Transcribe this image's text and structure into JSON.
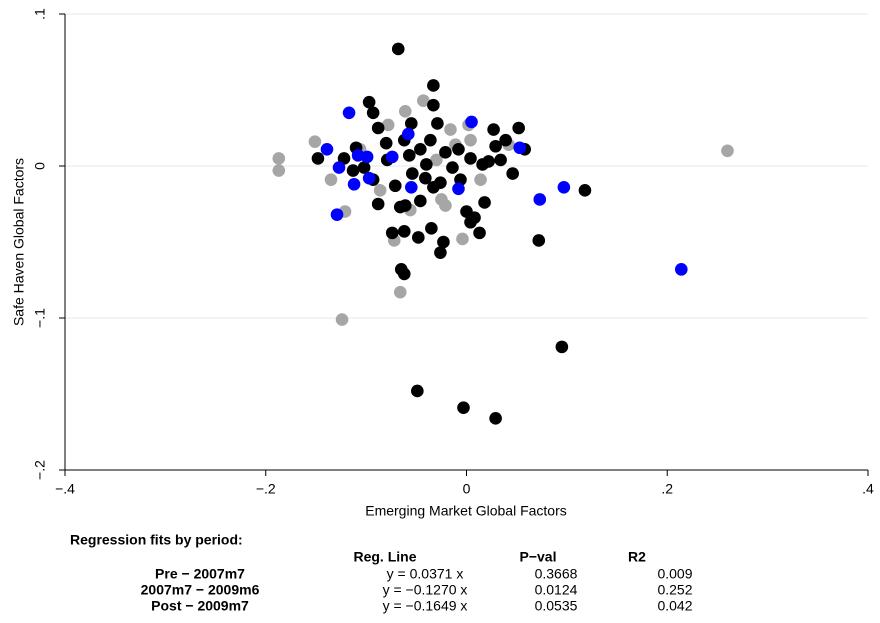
{
  "chart_data": {
    "type": "scatter",
    "x_label": "Emerging Market Global Factors",
    "y_label": "Safe Haven Global Factors",
    "xlim": [
      -0.4,
      0.4
    ],
    "ylim": [
      -0.2,
      0.1
    ],
    "xticks": [
      {
        "value": -0.4,
        "label": "−.4"
      },
      {
        "value": -0.2,
        "label": "−.2"
      },
      0,
      {
        "value": 0.2,
        "label": ".2"
      },
      {
        "value": 0.4,
        "label": ".4"
      }
    ],
    "yticks": [
      {
        "value": -0.2,
        "label": "−.2"
      },
      {
        "value": -0.1,
        "label": "−.1"
      },
      0,
      {
        "value": 0.1,
        "label": ".1"
      }
    ],
    "grid": true,
    "series": [
      {
        "color": "#a6a6a6",
        "x": [
          -0.187,
          -0.187,
          0.26,
          -0.124,
          -0.066,
          -0.004,
          -0.072,
          -0.151,
          -0.135,
          -0.121,
          -0.061,
          0.002,
          0.004,
          -0.043,
          -0.078,
          -0.025,
          -0.021,
          -0.056,
          -0.011,
          -0.03,
          0.014,
          -0.086,
          0.042,
          -0.016,
          -0.106
        ],
        "y": [
          0.005,
          -0.003,
          0.01,
          -0.101,
          -0.083,
          -0.048,
          -0.049,
          0.016,
          -0.009,
          -0.03,
          0.036,
          0.027,
          0.017,
          0.043,
          0.027,
          -0.022,
          -0.026,
          -0.029,
          0.014,
          0.004,
          -0.009,
          -0.016,
          0.014,
          0.024,
          0.011
        ]
      },
      {
        "color": "#000000",
        "x": [
          -0.068,
          -0.033,
          -0.033,
          -0.097,
          -0.093,
          -0.029,
          0.052,
          0.027,
          -0.088,
          -0.055,
          -0.062,
          -0.08,
          -0.11,
          -0.148,
          -0.122,
          0.058,
          0.029,
          0.004,
          0.022,
          0.046,
          0.118,
          0.072,
          0.018,
          0,
          0.008,
          0.013,
          0.004,
          -0.088,
          -0.074,
          -0.062,
          -0.048,
          -0.035,
          -0.023,
          -0.026,
          -0.065,
          -0.062,
          0.095,
          -0.049,
          -0.003,
          0.029,
          -0.046,
          -0.066,
          -0.061,
          -0.071,
          -0.054,
          -0.041,
          -0.026,
          -0.014,
          -0.021,
          -0.008,
          -0.036,
          -0.046,
          -0.102,
          -0.093,
          -0.113,
          -0.079,
          -0.057,
          -0.04,
          -0.033,
          -0.006,
          0.016,
          0.034,
          0.039
        ],
        "y": [
          0.077,
          0.053,
          0.04,
          0.042,
          0.035,
          0.028,
          0.025,
          0.024,
          0.025,
          0.028,
          0.017,
          0.015,
          0.012,
          0.005,
          0.005,
          0.011,
          0.013,
          0.005,
          0.003,
          -0.005,
          -0.016,
          -0.049,
          -0.024,
          -0.03,
          -0.034,
          -0.044,
          -0.037,
          -0.025,
          -0.044,
          -0.043,
          -0.047,
          -0.041,
          -0.05,
          -0.057,
          -0.068,
          -0.071,
          -0.119,
          -0.148,
          -0.159,
          -0.166,
          -0.023,
          -0.027,
          -0.026,
          -0.013,
          -0.005,
          -0.008,
          -0.011,
          -0.001,
          0.009,
          0.011,
          0.017,
          0.011,
          -0.001,
          -0.009,
          -0.003,
          0.004,
          0.007,
          0.001,
          -0.014,
          -0.009,
          0.001,
          0.004,
          0.017
        ]
      },
      {
        "color": "#0000ff",
        "x": [
          -0.117,
          -0.139,
          0.005,
          -0.058,
          -0.108,
          -0.099,
          -0.127,
          -0.112,
          -0.129,
          -0.074,
          -0.055,
          -0.008,
          0.053,
          0.073,
          0.097,
          0.214,
          -0.097
        ],
        "y": [
          0.035,
          0.011,
          0.029,
          0.021,
          0.007,
          0.006,
          -0.001,
          -0.012,
          -0.032,
          0.006,
          -0.014,
          -0.015,
          0.012,
          -0.022,
          -0.014,
          -0.068,
          -0.008
        ]
      }
    ]
  },
  "regression_table": {
    "title": "Regression fits by period:",
    "columns": [
      "Reg. Line",
      "P−val",
      "R2"
    ],
    "rows": [
      [
        "Pre − 2007m7",
        "y = 0.0371 x",
        "0.3668",
        "0.009"
      ],
      [
        "2007m7 − 2009m6",
        "y = −0.1270 x",
        "0.0124",
        "0.252"
      ],
      [
        "Post − 2009m7",
        "y = −0.1649 x",
        "0.0535",
        "0.042"
      ]
    ]
  }
}
